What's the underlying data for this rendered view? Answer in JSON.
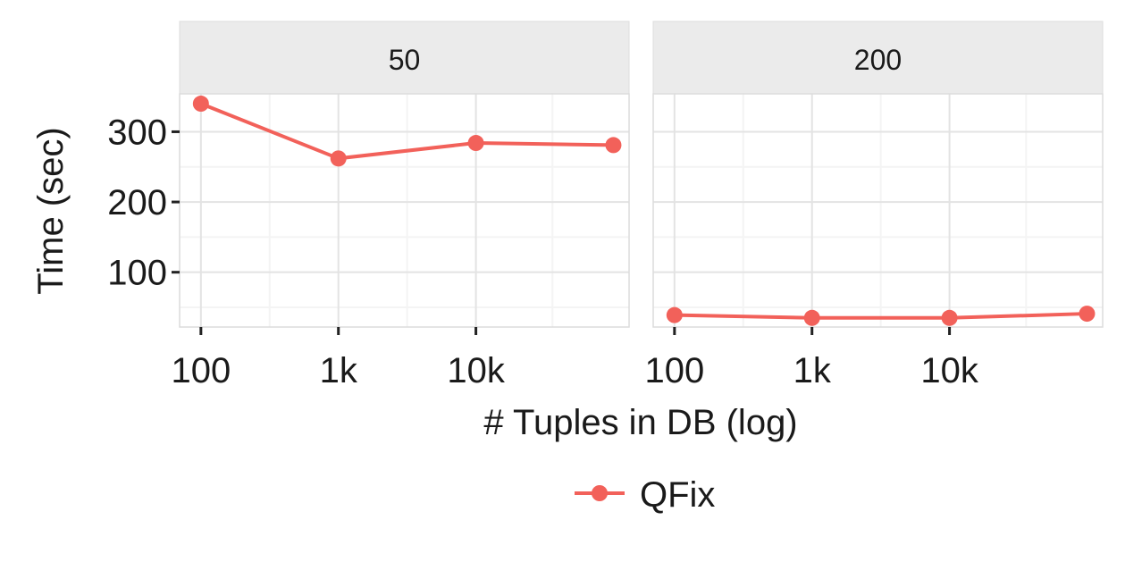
{
  "chart_data": {
    "type": "line",
    "facet_by": "strip label",
    "panels": [
      {
        "strip_label": "50",
        "x": [
          100,
          1000,
          10000,
          100000
        ],
        "y": [
          340,
          262,
          284,
          281
        ]
      },
      {
        "strip_label": "200",
        "x": [
          100,
          1000,
          10000,
          100000
        ],
        "y": [
          39,
          35,
          35,
          41
        ]
      }
    ],
    "series": [
      {
        "name": "QFix",
        "color": "#F2615A"
      }
    ],
    "xlabel": "# Tuples in DB (log)",
    "ylabel": "Time (sec)",
    "xscale": "log10",
    "xlim": [
      70,
      130000
    ],
    "ylim": [
      22,
      354
    ],
    "x_ticks": [
      100,
      1000,
      10000
    ],
    "x_tick_labels": [
      "100",
      "1k",
      "10k"
    ],
    "y_ticks": [
      100,
      200,
      300
    ],
    "y_tick_labels": [
      "100",
      "200",
      "300"
    ],
    "grid": true,
    "legend_position": "bottom"
  }
}
